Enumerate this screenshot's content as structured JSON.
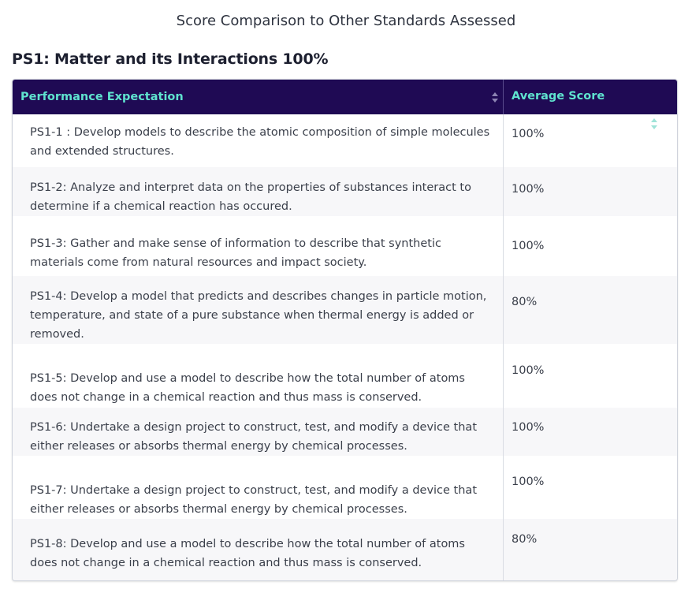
{
  "page": {
    "heading": "Score Comparison to Other Standards Assessed"
  },
  "section": {
    "title": "PS1: Matter and its Interactions 100%"
  },
  "table": {
    "headers": {
      "performance_expectation": "Performance Expectation",
      "average_score": "Average Score"
    },
    "sort_icon": "sort-updown-icon",
    "rows": [
      {
        "pe": "PS1-1 : Develop models to describe the atomic composition of simple molecules and extended structures.",
        "score": "100%"
      },
      {
        "pe": "PS1-2: Analyze and interpret data on the properties of substances interact to determine if a chemical reaction has occured.",
        "score": "100%"
      },
      {
        "pe": "PS1-3: Gather and make sense of information to describe that synthetic materials come from natural resources and impact society.",
        "score": "100%"
      },
      {
        "pe": "PS1-4: Develop a model that predicts and describes changes in particle motion, temperature, and state of a pure substance when thermal energy is added or removed.",
        "score": "80%"
      },
      {
        "pe": "PS1-5: Develop and use a model to describe how the total number of atoms does not change in a chemical reaction and thus mass is conserved.",
        "score": "100%"
      },
      {
        "pe": "PS1-6: Undertake a design project to construct, test, and modify a device that either releases or absorbs thermal energy by chemical processes.",
        "score": "100%"
      },
      {
        "pe": "PS1-7: Undertake a design project to construct, test, and modify a device that either releases or absorbs thermal energy by chemical processes.",
        "score": "100%"
      },
      {
        "pe": "PS1-8: Develop and use a model to describe how the total number of atoms does not change in a chemical reaction and thus mass is conserved.",
        "score": "80%"
      }
    ]
  },
  "colors": {
    "header_bg": "#1f0a54",
    "header_text": "#5fe3cf",
    "alt_row_bg": "#f7f7f9"
  }
}
